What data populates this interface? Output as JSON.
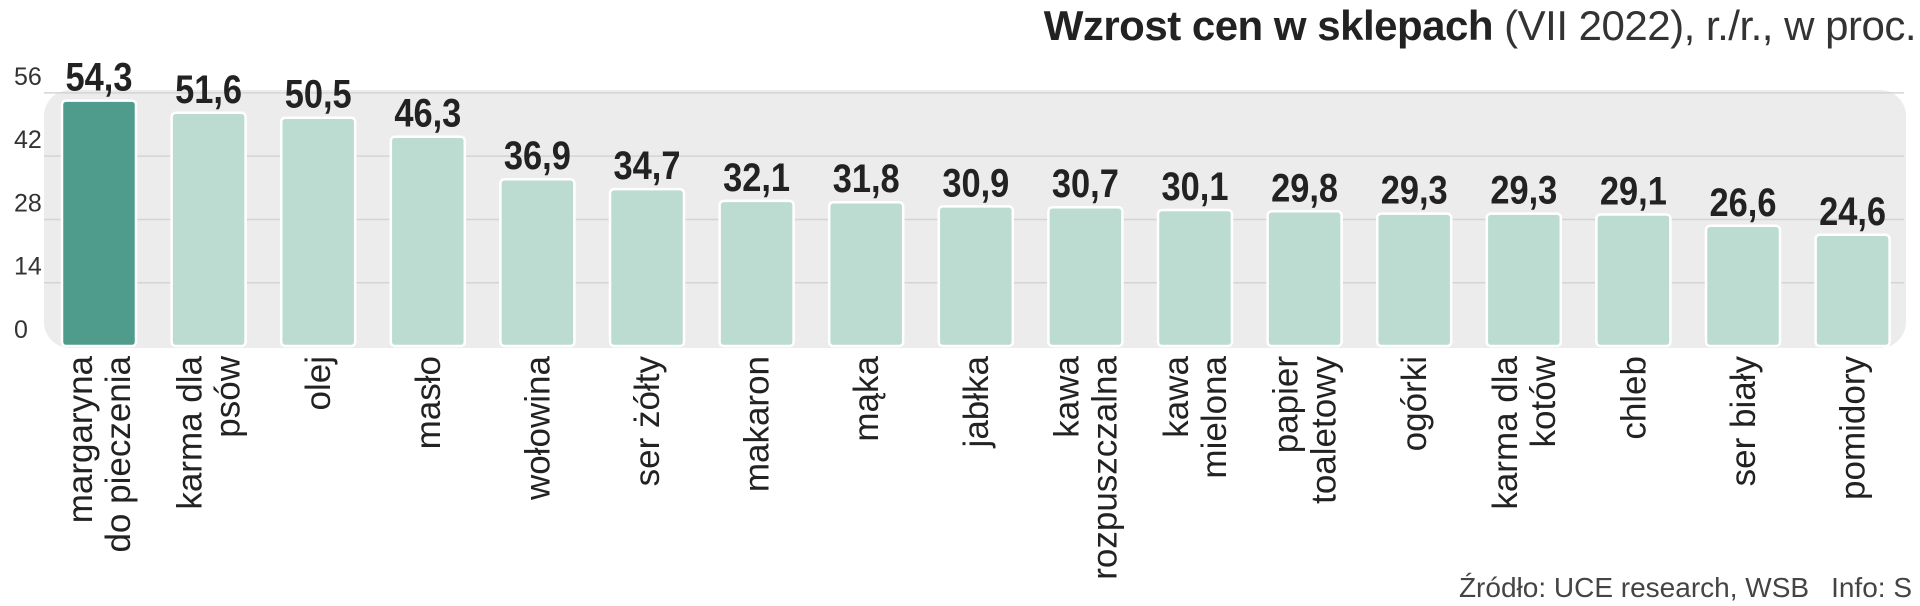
{
  "chart_data": {
    "type": "bar",
    "title": "Wzrost cen w sklepach",
    "subtitle": "(VII 2022), r./r., w proc.",
    "categories": [
      "margaryna do pieczenia",
      "karma dla psów",
      "olej",
      "masło",
      "wołowina",
      "ser żółty",
      "makaron",
      "mąka",
      "jabłka",
      "kawa rozpuszczalna",
      "kawa mielona",
      "papier toaletowy",
      "ogórki",
      "karma dla kotów",
      "chleb",
      "ser biały",
      "pomidory"
    ],
    "category_lines": [
      [
        "margaryna",
        "do pieczenia"
      ],
      [
        "karma dla",
        "psów"
      ],
      [
        "olej"
      ],
      [
        "masło"
      ],
      [
        "wołowina"
      ],
      [
        "ser żółty"
      ],
      [
        "makaron"
      ],
      [
        "mąka"
      ],
      [
        "jabłka"
      ],
      [
        "kawa",
        "rozpuszczalna"
      ],
      [
        "kawa",
        "mielona"
      ],
      [
        "papier",
        "toaletowy"
      ],
      [
        "ogórki"
      ],
      [
        "karma dla",
        "kotów"
      ],
      [
        "chleb"
      ],
      [
        "ser biały"
      ],
      [
        "pomidory"
      ]
    ],
    "values": [
      54.3,
      51.6,
      50.5,
      46.3,
      36.9,
      34.7,
      32.1,
      31.8,
      30.9,
      30.7,
      30.1,
      29.8,
      29.3,
      29.3,
      29.1,
      26.6,
      24.6
    ],
    "value_labels": [
      "54,3",
      "51,6",
      "50,5",
      "46,3",
      "36,9",
      "34,7",
      "32,1",
      "31,8",
      "30,9",
      "30,7",
      "30,1",
      "29,8",
      "29,3",
      "29,3",
      "29,1",
      "26,6",
      "24,6"
    ],
    "yticks": [
      "0",
      "14",
      "28",
      "42",
      "56"
    ],
    "ytick_values": [
      0,
      14,
      28,
      42,
      56
    ],
    "ylim": [
      0,
      56
    ],
    "xlabel": "",
    "ylabel": "",
    "grid": true,
    "colors": {
      "highlight": "#4f9c8c",
      "bar": "#bcdcd2",
      "panel": "#ececec",
      "grid": "#d4d4d4"
    },
    "highlight_index": 0
  },
  "source": {
    "source_text": "Źródło: UCE research, WSB",
    "info_text": "Info: S"
  }
}
